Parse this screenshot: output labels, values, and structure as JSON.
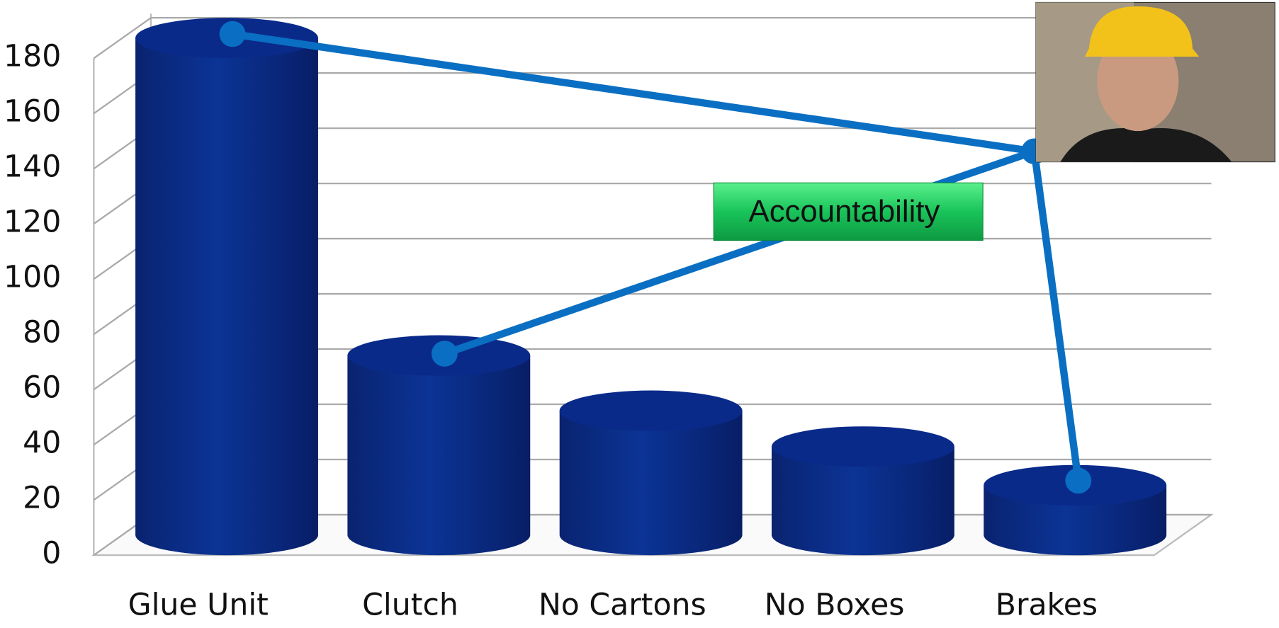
{
  "chart_data": {
    "type": "bar",
    "annotation": "Accountability",
    "categories": [
      "Glue Unit",
      "Clutch",
      "No Cartons",
      "No Boxes",
      "Brakes"
    ],
    "values": [
      180,
      65,
      45,
      32,
      18
    ],
    "color": "#0a2a8a",
    "ylim": [
      0,
      180
    ],
    "yticks": [
      0,
      20,
      40,
      60,
      80,
      100,
      120,
      140,
      160,
      180
    ],
    "grid": true
  }
}
